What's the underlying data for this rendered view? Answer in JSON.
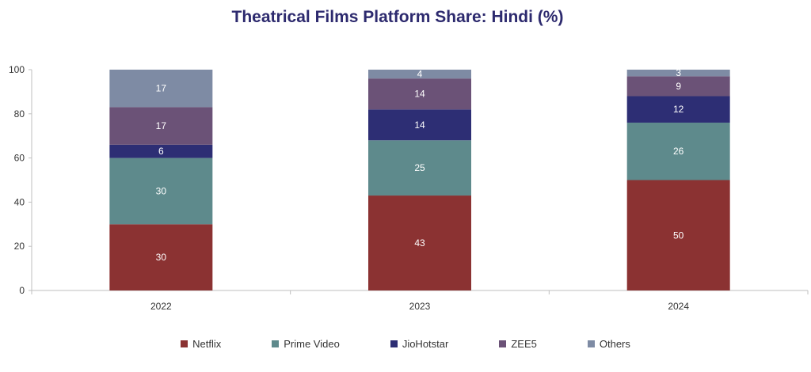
{
  "chart_data": {
    "type": "bar",
    "stacked": true,
    "title": "Theatrical Films Platform Share: Hindi (%)",
    "categories": [
      "2022",
      "2023",
      "2024"
    ],
    "series": [
      {
        "name": "Netflix",
        "color": "#8b3232",
        "values": [
          30,
          43,
          50
        ]
      },
      {
        "name": "Prime Video",
        "color": "#5e8a8c",
        "values": [
          30,
          25,
          26
        ]
      },
      {
        "name": "JioHotstar",
        "color": "#2d2e74",
        "values": [
          6,
          14,
          12
        ]
      },
      {
        "name": "ZEE5",
        "color": "#6b5277",
        "values": [
          17,
          14,
          9
        ]
      },
      {
        "name": "Others",
        "color": "#7e8ba4",
        "values": [
          17,
          4,
          3
        ]
      }
    ],
    "y_ticks": [
      "0",
      "20",
      "40",
      "60",
      "80",
      "100"
    ],
    "ylim": [
      0,
      100
    ],
    "legend_position": "bottom",
    "grid": false
  }
}
